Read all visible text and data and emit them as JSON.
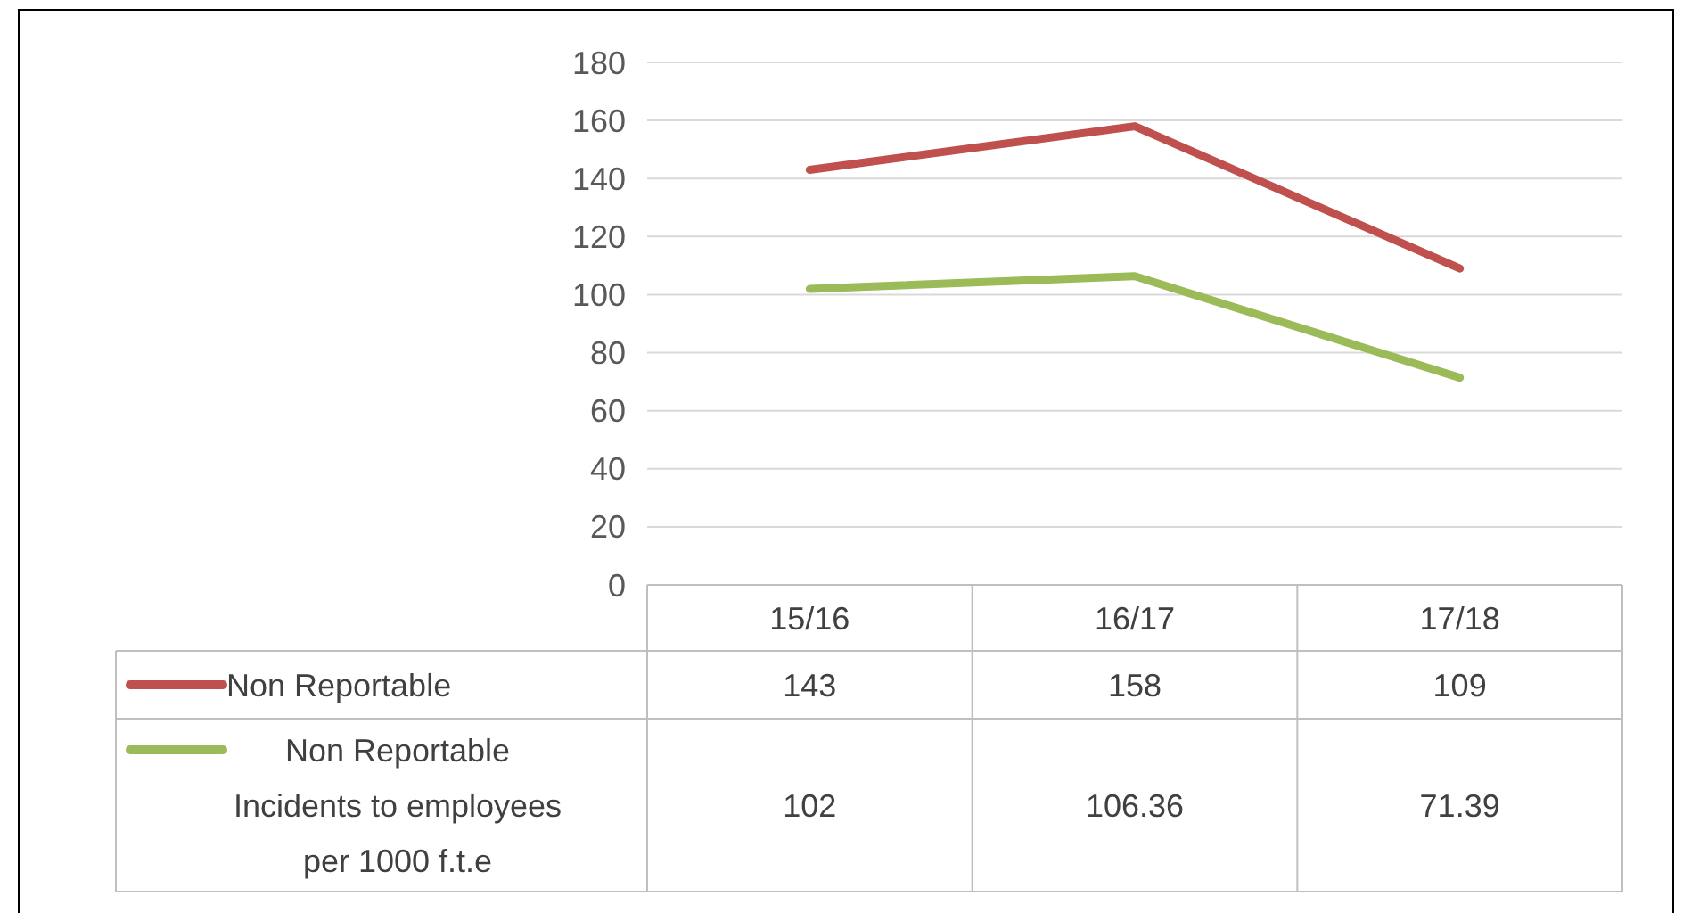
{
  "chart_data": {
    "type": "line",
    "categories": [
      "15/16",
      "16/17",
      "17/18"
    ],
    "series": [
      {
        "name": "Non Reportable",
        "color": "#c0504d",
        "values": [
          143,
          158,
          109
        ]
      },
      {
        "name": "Non Reportable Incidents to employees per 1000 f.t.e",
        "color": "#9bbb59",
        "values": [
          102,
          106.36,
          71.39
        ]
      }
    ],
    "ylim": [
      0,
      180
    ],
    "yticks": [
      0,
      20,
      40,
      60,
      80,
      100,
      120,
      140,
      160,
      180
    ],
    "grid": "y",
    "legend": "bottom",
    "data_labels": true,
    "marker": "none",
    "line_style": "solid"
  }
}
